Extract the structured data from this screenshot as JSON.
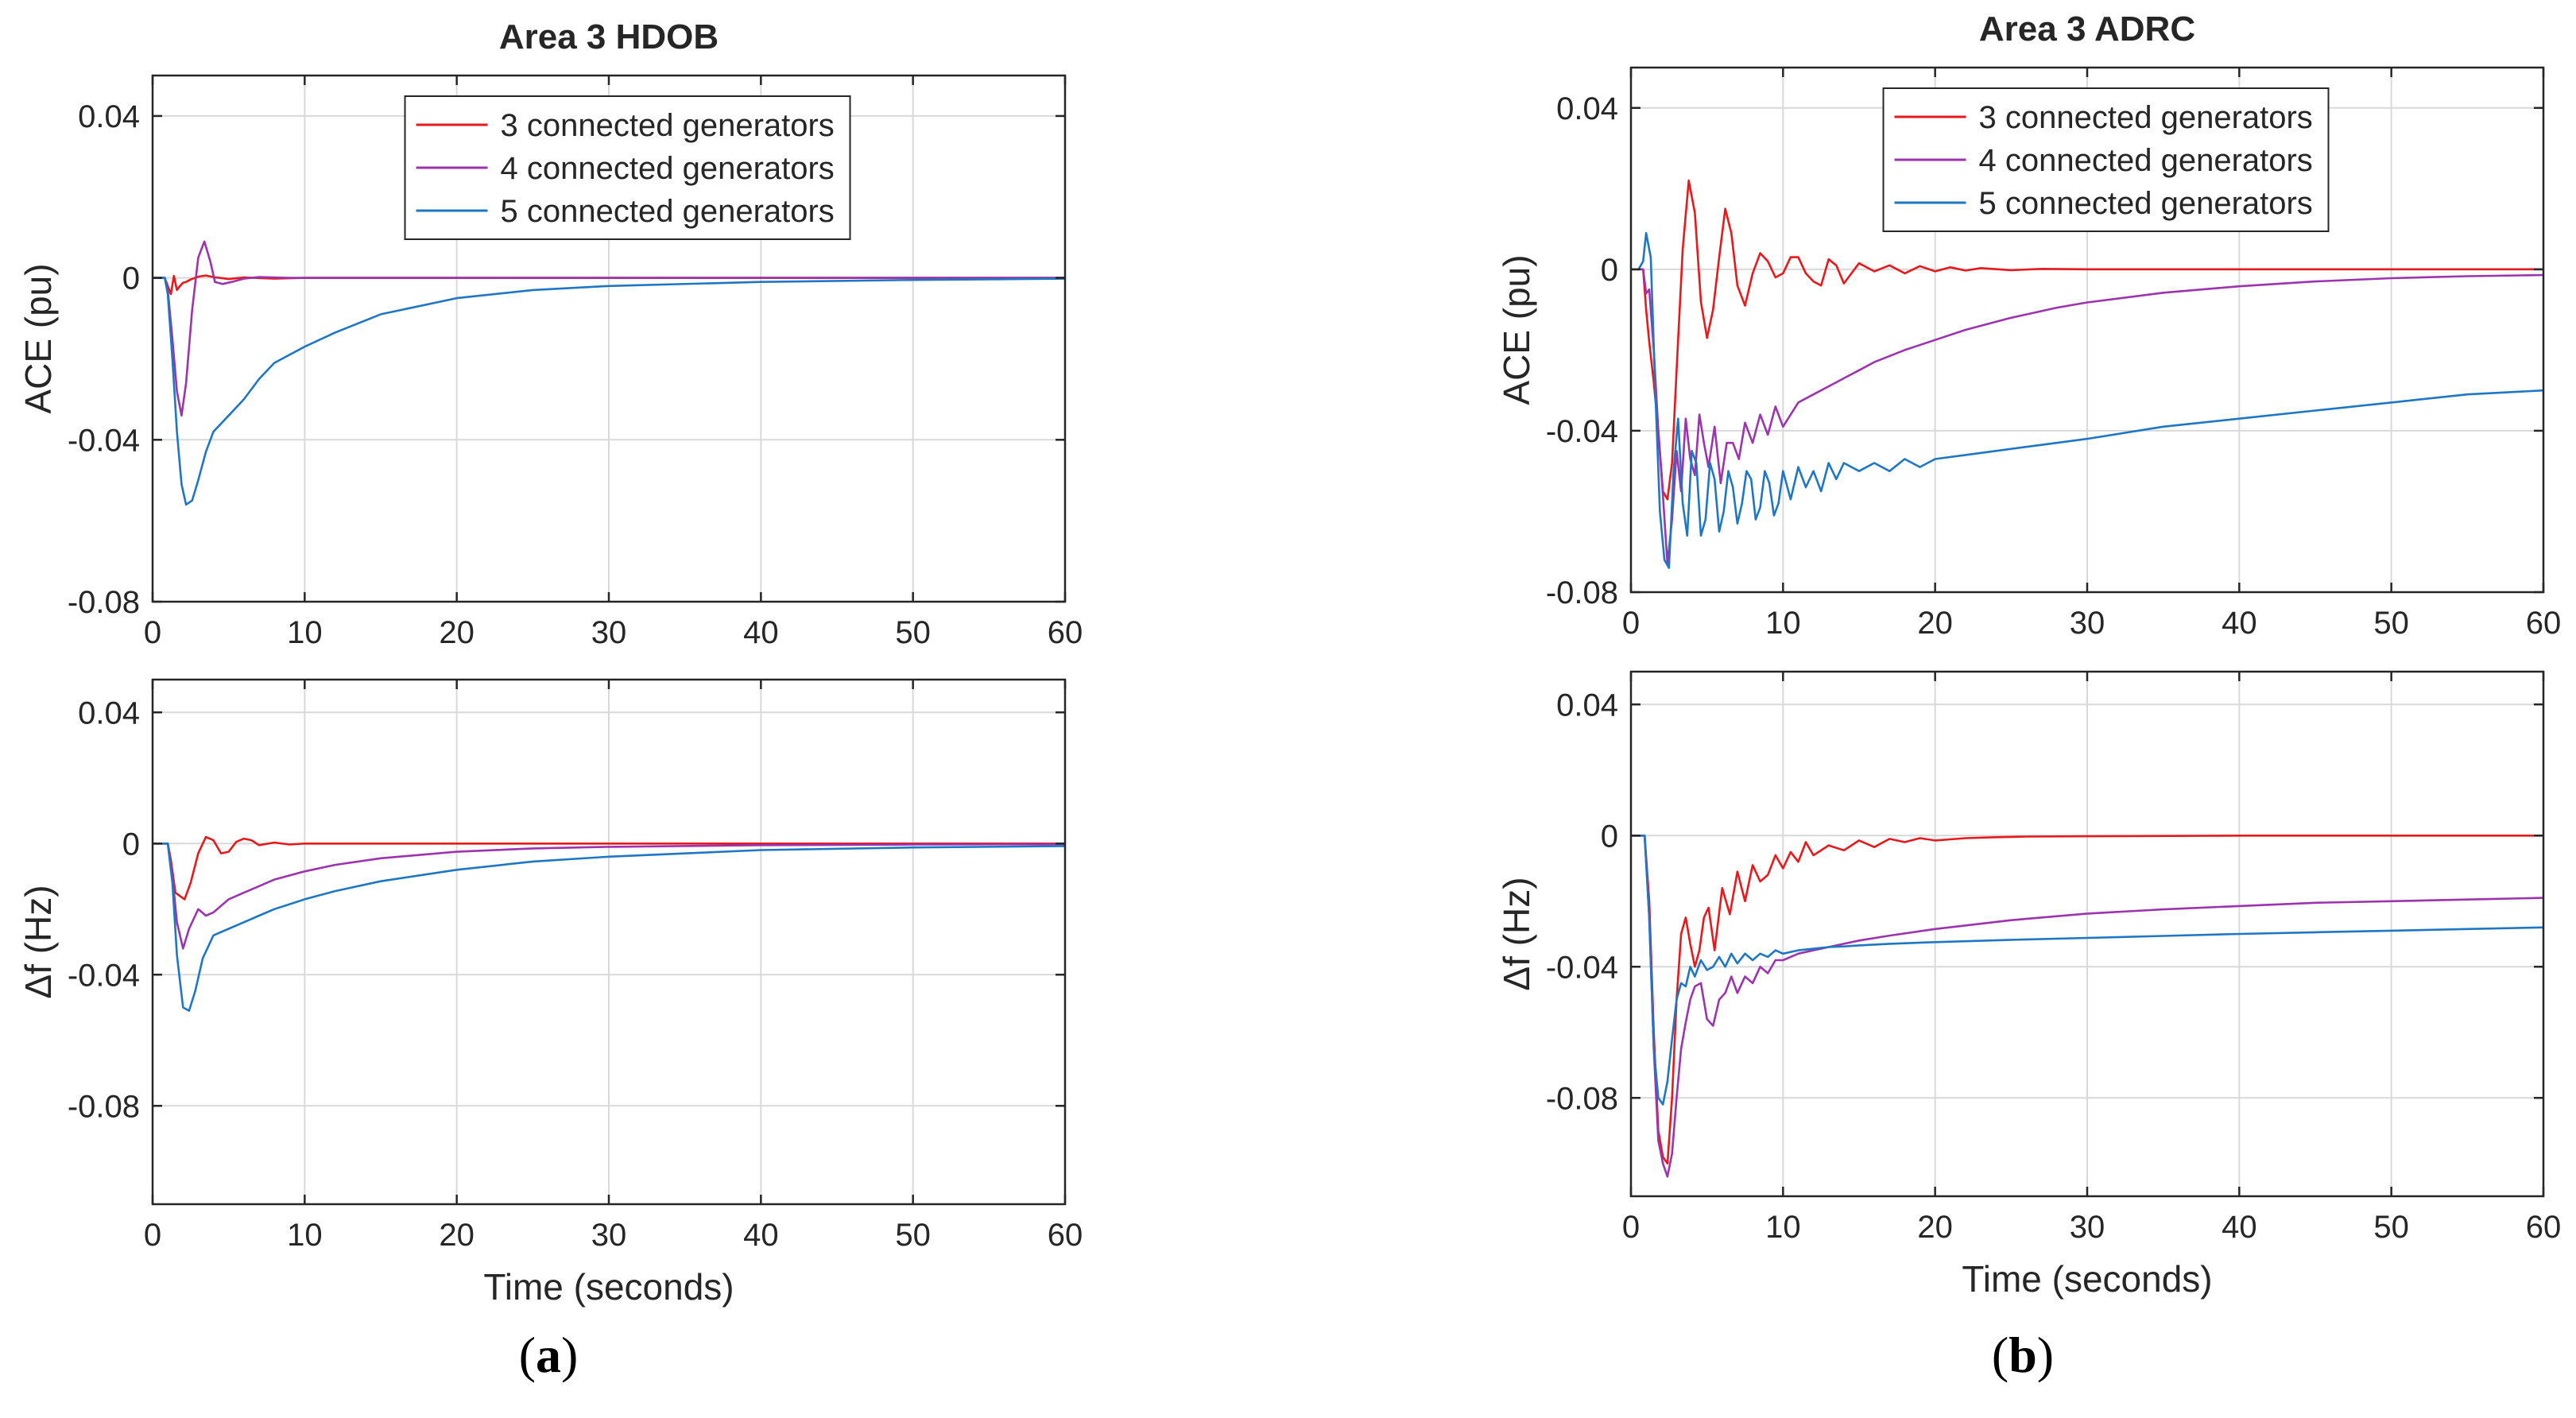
{
  "chart_data": [
    {
      "id": "a_ace",
      "type": "line",
      "title": "Area 3 HDOB",
      "xlabel": "",
      "ylabel": "ACE (pu)",
      "xlim": [
        0,
        60
      ],
      "ylim": [
        -0.08,
        0.05
      ],
      "xticks": [
        0,
        10,
        20,
        30,
        40,
        50,
        60
      ],
      "xticklabels": [
        "0",
        "10",
        "20",
        "30",
        "40",
        "50",
        "60"
      ],
      "yticks": [
        0.04,
        0,
        -0.04,
        -0.08
      ],
      "yticklabels": [
        "0.04",
        "0",
        "-0.04",
        "-0.08"
      ],
      "grid": true,
      "legend": "top-center",
      "series": [
        {
          "name": "3 connected generators",
          "color": "#e8191d",
          "x": [
            0,
            0.8,
            1.0,
            1.2,
            1.4,
            1.6,
            1.8,
            2.0,
            2.2,
            2.5,
            3,
            3.5,
            4,
            5,
            6,
            8,
            10,
            60
          ],
          "y": [
            0,
            0,
            -0.002,
            -0.004,
            0.0005,
            -0.003,
            -0.002,
            -0.0012,
            -0.001,
            -0.0004,
            0.0003,
            0.0006,
            0.0002,
            -0.0003,
            0.0001,
            -0.0002,
            0,
            0
          ]
        },
        {
          "name": "4 connected generators",
          "color": "#9b34ad",
          "x": [
            0,
            0.8,
            1.0,
            1.3,
            1.6,
            1.9,
            2.2,
            2.6,
            3.0,
            3.4,
            3.8,
            4.1,
            4.6,
            5.2,
            6,
            7,
            9,
            60
          ],
          "y": [
            0,
            0,
            -0.003,
            -0.015,
            -0.028,
            -0.034,
            -0.026,
            -0.008,
            0.005,
            0.009,
            0.004,
            -0.001,
            -0.0015,
            -0.001,
            -0.0002,
            0.0002,
            0,
            0
          ]
        },
        {
          "name": "5 connected generators",
          "color": "#1f77c4",
          "x": [
            0,
            0.8,
            1.0,
            1.3,
            1.6,
            1.9,
            2.2,
            2.6,
            3.0,
            3.5,
            4,
            5,
            6,
            7,
            8,
            10,
            12,
            15,
            20,
            25,
            30,
            40,
            50,
            60
          ],
          "y": [
            0,
            0,
            -0.004,
            -0.02,
            -0.038,
            -0.051,
            -0.056,
            -0.055,
            -0.05,
            -0.043,
            -0.038,
            -0.034,
            -0.03,
            -0.025,
            -0.021,
            -0.017,
            -0.0135,
            -0.009,
            -0.005,
            -0.003,
            -0.002,
            -0.001,
            -0.0005,
            -0.0002
          ]
        }
      ]
    },
    {
      "id": "a_df",
      "type": "line",
      "title": "",
      "xlabel": "Time (seconds)",
      "ylabel": "Δf (Hz)",
      "xlim": [
        0,
        60
      ],
      "ylim": [
        -0.11,
        0.05
      ],
      "xticks": [
        0,
        10,
        20,
        30,
        40,
        50,
        60
      ],
      "xticklabels": [
        "0",
        "10",
        "20",
        "30",
        "40",
        "50",
        "60"
      ],
      "yticks": [
        0.04,
        0,
        -0.04,
        -0.08
      ],
      "yticklabels": [
        "0.04",
        "0",
        "-0.04",
        "-0.08"
      ],
      "grid": true,
      "legend": "none",
      "series": [
        {
          "name": "3 connected generators",
          "color": "#e8191d",
          "x": [
            0,
            1.0,
            1.2,
            1.5,
            1.8,
            2.1,
            2.5,
            3.0,
            3.5,
            4.0,
            4.5,
            5.0,
            5.5,
            6.0,
            6.5,
            7.0,
            8,
            9,
            10,
            60
          ],
          "y": [
            0,
            0,
            -0.005,
            -0.015,
            -0.016,
            -0.017,
            -0.012,
            -0.003,
            0.002,
            0.001,
            -0.003,
            -0.0025,
            0.0005,
            0.0015,
            0.001,
            -0.0005,
            0.0003,
            -0.0003,
            0,
            0
          ]
        },
        {
          "name": "4 connected generators",
          "color": "#9b34ad",
          "x": [
            0,
            1.0,
            1.3,
            1.6,
            2.0,
            2.4,
            3.0,
            3.5,
            4.0,
            5,
            6,
            7,
            8,
            10,
            12,
            15,
            20,
            25,
            30,
            40,
            50,
            60
          ],
          "y": [
            0,
            0,
            -0.01,
            -0.024,
            -0.032,
            -0.026,
            -0.02,
            -0.022,
            -0.021,
            -0.017,
            -0.015,
            -0.013,
            -0.011,
            -0.0085,
            -0.0065,
            -0.0045,
            -0.0025,
            -0.0015,
            -0.001,
            -0.0005,
            -0.0003,
            -0.0002
          ]
        },
        {
          "name": "5 connected generators",
          "color": "#1f77c4",
          "x": [
            0,
            1.0,
            1.3,
            1.6,
            2.0,
            2.4,
            2.8,
            3.3,
            4,
            5,
            6,
            7,
            8,
            10,
            12,
            15,
            20,
            25,
            30,
            40,
            50,
            60
          ],
          "y": [
            0,
            0,
            -0.012,
            -0.034,
            -0.05,
            -0.051,
            -0.045,
            -0.035,
            -0.028,
            -0.026,
            -0.024,
            -0.022,
            -0.02,
            -0.017,
            -0.0145,
            -0.0115,
            -0.008,
            -0.0055,
            -0.004,
            -0.002,
            -0.0012,
            -0.0008
          ]
        }
      ]
    },
    {
      "id": "b_ace",
      "type": "line",
      "title": "Area 3 ADRC",
      "xlabel": "",
      "ylabel": "ACE (pu)",
      "xlim": [
        0,
        60
      ],
      "ylim": [
        -0.08,
        0.05
      ],
      "xticks": [
        0,
        10,
        20,
        30,
        40,
        50,
        60
      ],
      "xticklabels": [
        "0",
        "10",
        "20",
        "30",
        "40",
        "50",
        "60"
      ],
      "yticks": [
        0.04,
        0,
        -0.04,
        -0.08
      ],
      "yticklabels": [
        "0.04",
        "0",
        "-0.04",
        "-0.08"
      ],
      "grid": true,
      "legend": "top-center",
      "series": [
        {
          "name": "3 connected generators",
          "color": "#e8191d",
          "x": [
            0,
            0.8,
            1.0,
            1.2,
            1.5,
            1.8,
            2.1,
            2.4,
            2.7,
            3.0,
            3.4,
            3.8,
            4.2,
            4.6,
            5.0,
            5.4,
            5.8,
            6.2,
            6.6,
            7.0,
            7.5,
            8.0,
            8.5,
            9.0,
            9.5,
            10,
            10.5,
            11,
            11.5,
            12,
            12.5,
            13,
            13.5,
            14,
            14.5,
            15,
            16,
            17,
            18,
            19,
            20,
            21,
            22,
            23,
            25,
            27,
            30,
            60
          ],
          "y": [
            0,
            0,
            -0.01,
            -0.018,
            -0.028,
            -0.04,
            -0.055,
            -0.057,
            -0.048,
            -0.025,
            0.005,
            0.022,
            0.014,
            -0.008,
            -0.017,
            -0.01,
            0.003,
            0.015,
            0.009,
            -0.004,
            -0.009,
            -0.001,
            0.004,
            0.002,
            -0.002,
            -0.001,
            0.003,
            0.003,
            -0.001,
            -0.003,
            -0.004,
            0.0025,
            0.001,
            -0.0035,
            -0.001,
            0.0015,
            -0.0005,
            0.001,
            -0.001,
            0.0008,
            -0.0005,
            0.0005,
            -0.0003,
            0.0003,
            -0.0002,
            0.0001,
            0,
            0
          ]
        },
        {
          "name": "4 connected generators",
          "color": "#9b34ad",
          "x": [
            0,
            0.8,
            1.0,
            1.2,
            1.5,
            1.8,
            2.1,
            2.4,
            2.7,
            3.0,
            3.3,
            3.6,
            3.9,
            4.2,
            4.5,
            4.8,
            5.1,
            5.5,
            5.9,
            6.3,
            6.7,
            7.1,
            7.5,
            8.0,
            8.5,
            9.0,
            9.5,
            10,
            11,
            12,
            13,
            14,
            15,
            16,
            18,
            20,
            22,
            25,
            28,
            30,
            35,
            40,
            45,
            50,
            55,
            60
          ],
          "y": [
            0,
            0,
            -0.006,
            -0.005,
            -0.02,
            -0.04,
            -0.056,
            -0.073,
            -0.062,
            -0.045,
            -0.055,
            -0.037,
            -0.047,
            -0.051,
            -0.036,
            -0.043,
            -0.049,
            -0.039,
            -0.053,
            -0.043,
            -0.043,
            -0.047,
            -0.038,
            -0.043,
            -0.036,
            -0.041,
            -0.034,
            -0.039,
            -0.033,
            -0.031,
            -0.029,
            -0.027,
            -0.025,
            -0.023,
            -0.02,
            -0.0175,
            -0.015,
            -0.012,
            -0.0095,
            -0.0082,
            -0.0058,
            -0.0042,
            -0.003,
            -0.0022,
            -0.0017,
            -0.0014
          ]
        },
        {
          "name": "5 connected generators",
          "color": "#1f77c4",
          "x": [
            0,
            0.5,
            0.8,
            1.0,
            1.3,
            1.6,
            1.9,
            2.2,
            2.5,
            2.8,
            3.1,
            3.4,
            3.7,
            4.0,
            4.3,
            4.6,
            4.9,
            5.2,
            5.5,
            5.8,
            6.1,
            6.4,
            6.7,
            7.0,
            7.3,
            7.6,
            7.9,
            8.2,
            8.5,
            8.8,
            9.1,
            9.4,
            9.7,
            10.0,
            10.5,
            11,
            11.5,
            12,
            12.5,
            13,
            13.5,
            14,
            15,
            16,
            17,
            18,
            19,
            20,
            22,
            24,
            26,
            28,
            30,
            35,
            40,
            45,
            50,
            55,
            60
          ],
          "y": [
            0,
            0,
            0.002,
            0.009,
            0.003,
            -0.03,
            -0.06,
            -0.072,
            -0.074,
            -0.05,
            -0.037,
            -0.058,
            -0.066,
            -0.045,
            -0.048,
            -0.066,
            -0.062,
            -0.048,
            -0.052,
            -0.065,
            -0.06,
            -0.05,
            -0.054,
            -0.063,
            -0.058,
            -0.05,
            -0.052,
            -0.062,
            -0.059,
            -0.05,
            -0.053,
            -0.061,
            -0.058,
            -0.05,
            -0.057,
            -0.049,
            -0.054,
            -0.05,
            -0.055,
            -0.048,
            -0.052,
            -0.048,
            -0.05,
            -0.048,
            -0.05,
            -0.047,
            -0.049,
            -0.047,
            -0.046,
            -0.045,
            -0.044,
            -0.043,
            -0.042,
            -0.039,
            -0.037,
            -0.035,
            -0.033,
            -0.031,
            -0.03
          ]
        }
      ]
    },
    {
      "id": "b_df",
      "type": "line",
      "title": "",
      "xlabel": "Time (seconds)",
      "ylabel": "Δf (Hz)",
      "xlim": [
        0,
        60
      ],
      "ylim": [
        -0.11,
        0.05
      ],
      "xticks": [
        0,
        10,
        20,
        30,
        40,
        50,
        60
      ],
      "xticklabels": [
        "0",
        "10",
        "20",
        "30",
        "40",
        "50",
        "60"
      ],
      "yticks": [
        0.04,
        0,
        -0.04,
        -0.08
      ],
      "yticklabels": [
        "0.04",
        "0",
        "-0.04",
        "-0.08"
      ],
      "grid": true,
      "legend": "none",
      "series": [
        {
          "name": "3 connected generators",
          "color": "#e8191d",
          "x": [
            0,
            0.9,
            1.2,
            1.5,
            1.8,
            2.1,
            2.4,
            2.7,
            3.0,
            3.3,
            3.6,
            3.9,
            4.2,
            4.5,
            4.8,
            5.1,
            5.5,
            6.0,
            6.5,
            7.0,
            7.5,
            8.0,
            8.5,
            9.0,
            9.5,
            10,
            10.5,
            11,
            11.5,
            12,
            13,
            14,
            15,
            16,
            17,
            18,
            19,
            20,
            22,
            24,
            26,
            30,
            40,
            50,
            60
          ],
          "y": [
            0,
            0,
            -0.02,
            -0.06,
            -0.09,
            -0.098,
            -0.1,
            -0.08,
            -0.05,
            -0.03,
            -0.025,
            -0.033,
            -0.04,
            -0.035,
            -0.025,
            -0.022,
            -0.035,
            -0.016,
            -0.024,
            -0.011,
            -0.02,
            -0.009,
            -0.014,
            -0.012,
            -0.006,
            -0.01,
            -0.005,
            -0.008,
            -0.002,
            -0.006,
            -0.003,
            -0.0045,
            -0.0015,
            -0.0035,
            -0.001,
            -0.002,
            -0.0008,
            -0.0015,
            -0.0008,
            -0.0005,
            -0.0003,
            -0.0002,
            0,
            0,
            0
          ]
        },
        {
          "name": "4 connected generators",
          "color": "#9b34ad",
          "x": [
            0,
            0.9,
            1.2,
            1.5,
            1.8,
            2.1,
            2.4,
            2.7,
            3.0,
            3.3,
            3.6,
            3.9,
            4.2,
            4.6,
            5.0,
            5.4,
            5.8,
            6.2,
            6.6,
            7.0,
            7.5,
            8.0,
            8.5,
            9.0,
            9.5,
            10,
            11,
            12,
            13,
            14,
            15,
            17,
            20,
            25,
            30,
            35,
            40,
            45,
            50,
            55,
            60
          ],
          "y": [
            0,
            0,
            -0.025,
            -0.065,
            -0.093,
            -0.1,
            -0.104,
            -0.097,
            -0.08,
            -0.065,
            -0.057,
            -0.05,
            -0.046,
            -0.045,
            -0.056,
            -0.058,
            -0.05,
            -0.048,
            -0.043,
            -0.048,
            -0.043,
            -0.045,
            -0.04,
            -0.042,
            -0.038,
            -0.038,
            -0.036,
            -0.035,
            -0.034,
            -0.033,
            -0.032,
            -0.0305,
            -0.0285,
            -0.0258,
            -0.0238,
            -0.0225,
            -0.0215,
            -0.0205,
            -0.02,
            -0.0195,
            -0.019
          ]
        },
        {
          "name": "5 connected generators",
          "color": "#1f77c4",
          "x": [
            0,
            0.9,
            1.2,
            1.5,
            1.8,
            2.1,
            2.4,
            2.7,
            3.0,
            3.3,
            3.6,
            3.9,
            4.2,
            4.6,
            5.0,
            5.4,
            5.8,
            6.2,
            6.6,
            7.0,
            7.5,
            8.0,
            8.5,
            9.0,
            9.5,
            10,
            11,
            12,
            13,
            14,
            15,
            17,
            20,
            25,
            30,
            35,
            40,
            45,
            50,
            55,
            60
          ],
          "y": [
            0,
            0,
            -0.025,
            -0.065,
            -0.08,
            -0.082,
            -0.075,
            -0.062,
            -0.05,
            -0.045,
            -0.046,
            -0.04,
            -0.043,
            -0.038,
            -0.041,
            -0.04,
            -0.037,
            -0.04,
            -0.036,
            -0.039,
            -0.036,
            -0.038,
            -0.036,
            -0.037,
            -0.035,
            -0.036,
            -0.035,
            -0.0345,
            -0.034,
            -0.0338,
            -0.0335,
            -0.033,
            -0.0325,
            -0.0318,
            -0.0312,
            -0.0306,
            -0.03,
            -0.0295,
            -0.029,
            -0.0285,
            -0.028
          ]
        }
      ]
    }
  ],
  "panel_labels": {
    "a": {
      "open": "(",
      "letter": "a",
      "close": ")"
    },
    "b": {
      "open": "(",
      "letter": "b",
      "close": ")"
    }
  }
}
